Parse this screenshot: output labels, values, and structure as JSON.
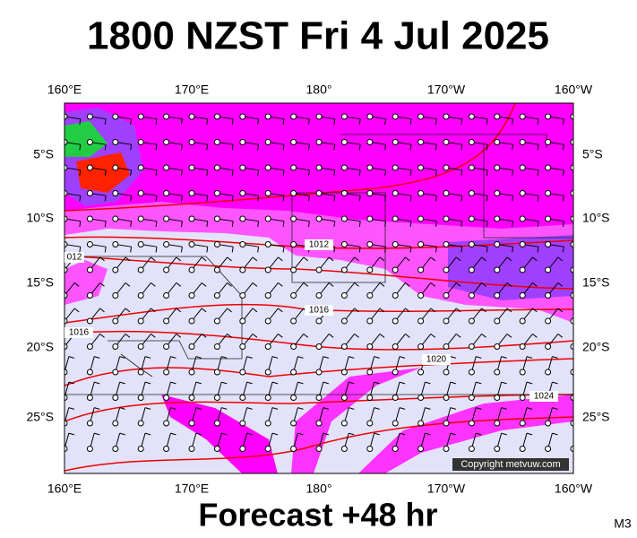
{
  "header": {
    "title": "1800 NZST Fri 4 Jul 2025"
  },
  "map": {
    "top_longitudes": [
      "160°E",
      "170°E",
      "180°",
      "170°W",
      "160°W"
    ],
    "bottom_longitudes": [
      "160°E",
      "170°E",
      "180°",
      "170°W",
      "160°W"
    ],
    "left_latitudes": [
      "5°S",
      "10°S",
      "15°S",
      "20°S",
      "25°S"
    ],
    "right_latitudes": [
      "5°S",
      "10°S",
      "15°S",
      "20°S",
      "25°S"
    ],
    "isobar_labels": [
      "1012",
      "012",
      "1016",
      "1016",
      "1020",
      "1024"
    ],
    "copyright": "Copyright metvuw.com"
  },
  "footer": {
    "forecast": "Forecast +48 hr",
    "code": "M3"
  }
}
